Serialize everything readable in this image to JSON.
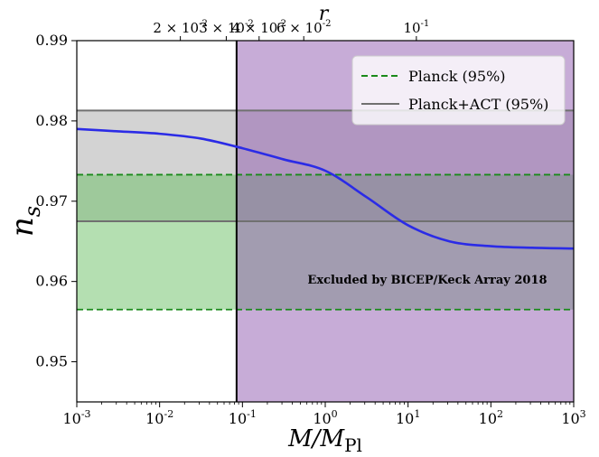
{
  "chart_data": {
    "type": "line",
    "x_scale": "log",
    "xlim": [
      0.001,
      1000
    ],
    "ylim": [
      0.945,
      0.99
    ],
    "xlabel_main": "M/M",
    "xlabel_sub": "Pl",
    "ylabel_main": "n",
    "ylabel_sub": "s",
    "top_axis_label": "r",
    "x_ticks": [
      {
        "exp": "-3"
      },
      {
        "exp": "-2"
      },
      {
        "exp": "-1"
      },
      {
        "exp": "0"
      },
      {
        "exp": "1"
      },
      {
        "exp": "2"
      },
      {
        "exp": "3"
      }
    ],
    "y_ticks": [
      {
        "value": 0.95,
        "label": "0.95"
      },
      {
        "value": 0.96,
        "label": "0.96"
      },
      {
        "value": 0.97,
        "label": "0.97"
      },
      {
        "value": 0.98,
        "label": "0.98"
      },
      {
        "value": 0.99,
        "label": "0.99"
      }
    ],
    "top_ticks": [
      {
        "m": 0.0178,
        "mant": "2",
        "exp": "-2"
      },
      {
        "m": 0.0638,
        "mant": "3",
        "exp": "-2"
      },
      {
        "m": 0.159,
        "mant": "4",
        "exp": "-2"
      },
      {
        "m": 0.55,
        "mant": "6",
        "exp": "-2"
      },
      {
        "m": 12.6,
        "mant": "",
        "exp": "-1"
      }
    ],
    "bands": {
      "planck_act": {
        "ymin": 0.9675,
        "ymax": 0.9813,
        "color": "#b5b5b5",
        "opacity": 0.6
      },
      "planck": {
        "ymin": 0.9565,
        "ymax": 0.9733,
        "color": "#6abf63",
        "opacity": 0.5
      }
    },
    "excluded_region": {
      "x_from": 0.085,
      "color": "#8f5ab0",
      "opacity": 0.5,
      "label": "Excluded by BICEP/Keck Array 2018"
    },
    "series": [
      {
        "color": "#2b2be6",
        "points": [
          [
            0.001,
            0.979
          ],
          [
            0.00316,
            0.9787
          ],
          [
            0.01,
            0.9784
          ],
          [
            0.0316,
            0.9778
          ],
          [
            0.1,
            0.9766
          ],
          [
            0.316,
            0.9752
          ],
          [
            1,
            0.9738
          ],
          [
            3.16,
            0.9705
          ],
          [
            10,
            0.967
          ],
          [
            31.6,
            0.965
          ],
          [
            100,
            0.9644
          ],
          [
            316,
            0.9642
          ],
          [
            1000,
            0.9641
          ]
        ]
      }
    ],
    "legend": {
      "position": "top-right",
      "entries": [
        {
          "label": "Planck (95%)",
          "style": "dashed",
          "color": "#1a8a1a"
        },
        {
          "label": "Planck+ACT (95%)",
          "style": "solid",
          "color": "#707070"
        }
      ]
    },
    "grid": false
  }
}
